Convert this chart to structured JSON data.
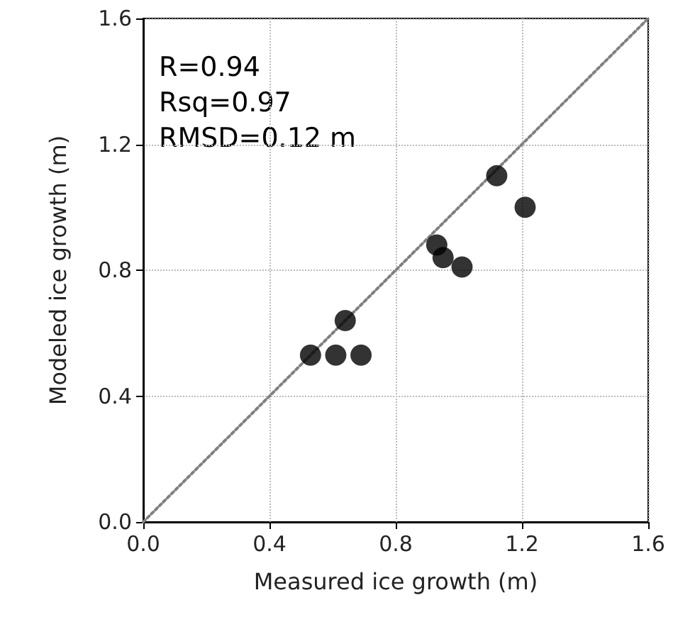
{
  "chart_data": {
    "type": "scatter",
    "xlabel": "Measured ice growth (m)",
    "ylabel": "Modeled ice growth (m)",
    "annotations": [
      "R=0.94",
      "Rsq=0.97",
      "RMSD=0.12 m"
    ],
    "xlim": [
      0,
      1.6
    ],
    "ylim": [
      0,
      1.6
    ],
    "xticks": [
      "0.0",
      0.4,
      0.8,
      1.2,
      1.6
    ],
    "yticks": [
      "0.0",
      0.4,
      0.8,
      1.2,
      1.6
    ],
    "grid": true,
    "marker": "circle",
    "series": [
      {
        "type": "line",
        "color": "#808080",
        "line_style": "dotted",
        "marker": "none",
        "x": [
          0,
          1.6
        ],
        "values": [
          0,
          1.6
        ]
      },
      {
        "color": "#000000",
        "x": [
          0.53,
          0.61,
          0.69,
          0.64,
          0.93,
          0.95,
          1.01,
          1.12,
          1.21
        ],
        "values": [
          0.53,
          0.53,
          0.53,
          0.64,
          0.88,
          0.84,
          0.81,
          1.1,
          1.0
        ]
      }
    ]
  }
}
